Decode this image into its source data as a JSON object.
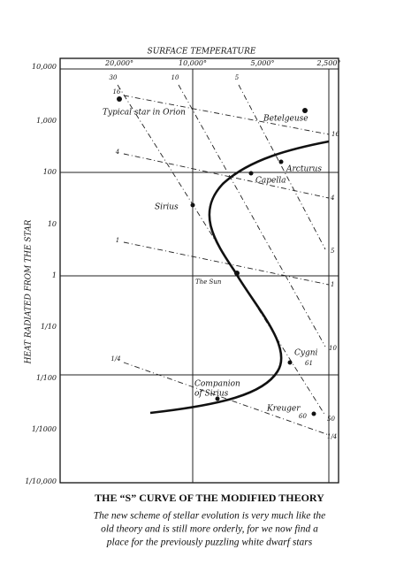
{
  "figure": {
    "x_axis_label": "SURFACE TEMPERATURE",
    "y_axis_label": "HEAT RADIATED FROM THE STAR",
    "x_tick_labels": [
      "20,000°",
      "10,000°",
      "5,000°",
      "2,500°"
    ],
    "y_tick_labels": [
      "10,000",
      "1,000",
      "100",
      "10",
      "1",
      "1/10",
      "1/100",
      "1/1000",
      "1/10,000"
    ],
    "line_labels": {
      "top": [
        "30",
        "16",
        "10",
        "5"
      ],
      "left": [
        "4",
        "1",
        "1/4"
      ],
      "right": [
        "16",
        "4",
        "5",
        "1",
        "10",
        "50",
        "1/4"
      ]
    },
    "stars": {
      "orion": "Typical star in Orion",
      "betelgeuse": "Betelgeuse",
      "arcturus": "Arcturus",
      "capella": "Capella",
      "sirius": "Sirius",
      "sun": "The Sun",
      "cygni": [
        "Cygni",
        "61"
      ],
      "companion": [
        "Companion",
        "of Sirius"
      ],
      "kreuger": [
        "Kreuger",
        "60"
      ]
    }
  },
  "caption": {
    "title": "THE “S” CURVE OF THE MODIFIED THEORY",
    "text": [
      "The new scheme of stellar evolution is very much like the",
      "old theory and is still more orderly, for we now find a",
      "place for the previously puzzling white dwarf stars"
    ]
  }
}
